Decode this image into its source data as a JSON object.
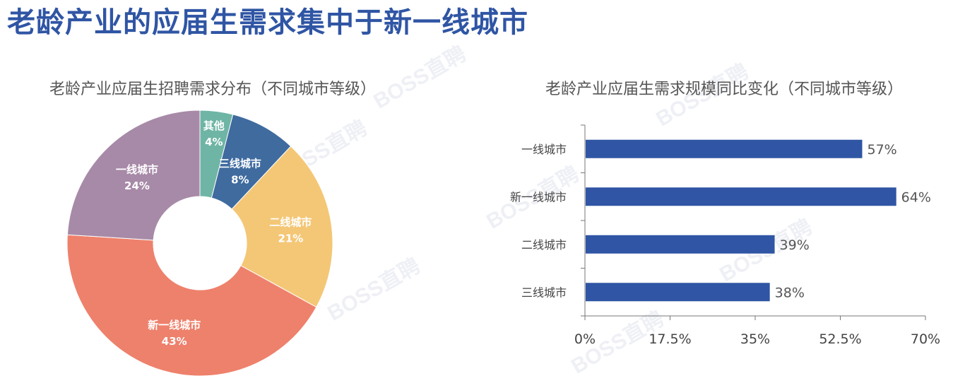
{
  "page": {
    "title": "老龄产业的应届生需求集中于新一线城市",
    "title_color": "#2f55a4",
    "watermark": "BOSS直聘"
  },
  "chart_data": [
    {
      "type": "pie",
      "title": "老龄产业应届生招聘需求分布（不同城市等级）",
      "slices": [
        {
          "label": "其他",
          "value": 4,
          "value_label": "4%",
          "color": "#6fb5a5"
        },
        {
          "label": "三线城市",
          "value": 8,
          "value_label": "8%",
          "color": "#3f6b9f"
        },
        {
          "label": "二线城市",
          "value": 21,
          "value_label": "21%",
          "color": "#f4c776"
        },
        {
          "label": "新一线城市",
          "value": 43,
          "value_label": "43%",
          "color": "#ee816c"
        },
        {
          "label": "一线城市",
          "value": 24,
          "value_label": "24%",
          "color": "#a78aa7"
        }
      ],
      "start_angle_deg": 0,
      "direction": "clockwise",
      "donut": true
    },
    {
      "type": "bar",
      "orientation": "horizontal",
      "title": "老龄产业应届生需求规模同比变化（不同城市等级）",
      "categories": [
        "一线城市",
        "新一线城市",
        "二线城市",
        "三线城市"
      ],
      "values": [
        57,
        64,
        39,
        38
      ],
      "value_labels": [
        "57%",
        "64%",
        "39%",
        "38%"
      ],
      "xlim": [
        0,
        70
      ],
      "x_ticks": [
        0,
        17.5,
        35,
        52.5,
        70
      ],
      "x_tick_labels": [
        "0%",
        "17.5%",
        "35%",
        "52.5%",
        "70%"
      ],
      "bar_color": "#2f55a4",
      "grid": false
    }
  ],
  "colors": {
    "chart_title": "#555555",
    "axis": "#777777",
    "tick_label": "#444444",
    "value_label": "#555555",
    "pie_label": "#ffffff"
  }
}
